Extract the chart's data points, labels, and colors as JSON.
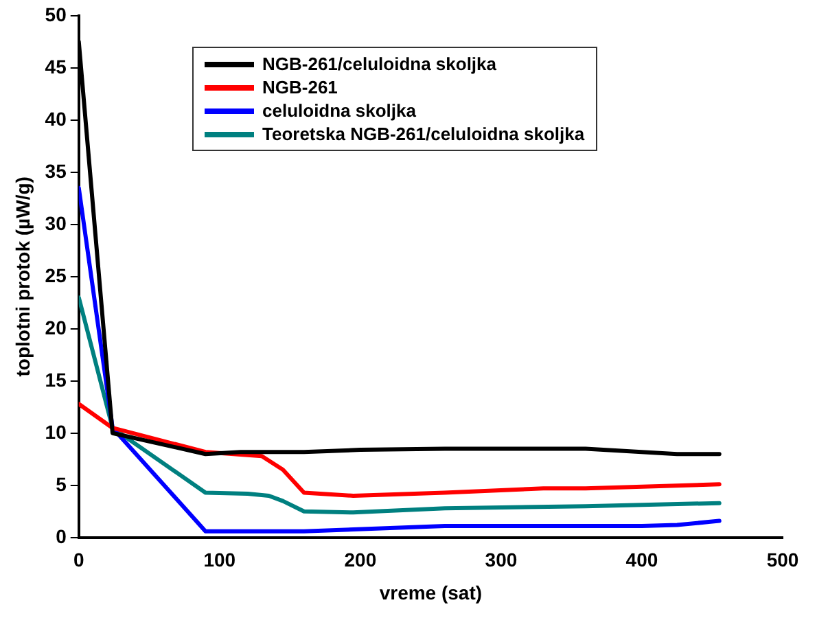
{
  "chart_data": {
    "type": "line",
    "xlabel": "vreme (sat)",
    "ylabel": "toplotni protok (µW/g)",
    "xlim": [
      0,
      500
    ],
    "xticks": [
      0,
      100,
      200,
      300,
      400,
      500
    ],
    "ylim": [
      0,
      50
    ],
    "yticks": [
      0,
      5,
      10,
      15,
      20,
      25,
      30,
      35,
      40,
      45,
      50
    ],
    "legend": "top",
    "grid": false,
    "marker": "none",
    "line_style": "solid",
    "series": [
      {
        "name": "NGB-261/celuloidna skoljka",
        "color": "#000000",
        "x": [
          0,
          24,
          90,
          115,
          160,
          200,
          260,
          360,
          425,
          455
        ],
        "values": [
          47.5,
          10,
          8,
          8.2,
          8.2,
          8.4,
          8.5,
          8.5,
          8,
          8
        ]
      },
      {
        "name": "NGB-261",
        "color": "#ff0000",
        "x": [
          0,
          24,
          90,
          120,
          130,
          145,
          160,
          195,
          260,
          330,
          360,
          455
        ],
        "values": [
          12.8,
          10.5,
          8.2,
          7.9,
          7.8,
          6.5,
          4.3,
          4,
          4.3,
          4.7,
          4.7,
          5.1
        ]
      },
      {
        "name": "celuloidna skoljka",
        "color": "#0000ff",
        "x": [
          0,
          24,
          90,
          160,
          260,
          400,
          425,
          455
        ],
        "values": [
          33.5,
          10.5,
          0.6,
          0.6,
          1.1,
          1.1,
          1.2,
          1.6
        ]
      },
      {
        "name": "Teoretska NGB-261/celuloidna skoljka",
        "color": "#008080",
        "x": [
          0,
          24,
          90,
          120,
          135,
          145,
          160,
          195,
          260,
          360,
          455
        ],
        "values": [
          23,
          10.5,
          4.3,
          4.2,
          4,
          3.5,
          2.5,
          2.4,
          2.8,
          3,
          3.3
        ]
      }
    ]
  }
}
